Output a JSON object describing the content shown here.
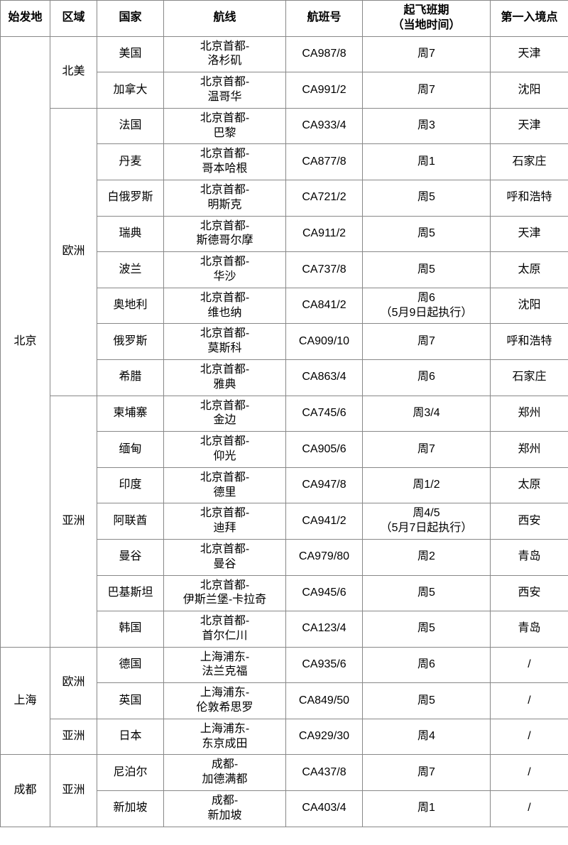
{
  "headers": {
    "origin": "始发地",
    "region": "区域",
    "country": "国家",
    "route": "航线",
    "flight": "航班号",
    "schedule": "起飞班期\n（当地时间）",
    "entry": "第一入境点"
  },
  "table": [
    {
      "origin": "北京",
      "origin_rowspan": 17,
      "region": "北美",
      "region_rowspan": 2,
      "country": "美国",
      "route": "北京首都-\n洛杉矶",
      "flight": "CA987/8",
      "schedule": "周7",
      "entry": "天津"
    },
    {
      "country": "加拿大",
      "route": "北京首都-\n温哥华",
      "flight": "CA991/2",
      "schedule": "周7",
      "entry": "沈阳"
    },
    {
      "region": "欧洲",
      "region_rowspan": 8,
      "country": "法国",
      "route": "北京首都-\n巴黎",
      "flight": "CA933/4",
      "schedule": "周3",
      "entry": "天津"
    },
    {
      "country": "丹麦",
      "route": "北京首都-\n哥本哈根",
      "flight": "CA877/8",
      "schedule": "周1",
      "entry": "石家庄"
    },
    {
      "country": "白俄罗斯",
      "route": "北京首都-\n明斯克",
      "flight": "CA721/2",
      "schedule": "周5",
      "entry": "呼和浩特"
    },
    {
      "country": "瑞典",
      "route": "北京首都-\n斯德哥尔摩",
      "flight": "CA911/2",
      "schedule": "周5",
      "entry": "天津"
    },
    {
      "country": "波兰",
      "route": "北京首都-\n华沙",
      "flight": "CA737/8",
      "schedule": "周5",
      "entry": "太原"
    },
    {
      "country": "奥地利",
      "route": "北京首都-\n维也纳",
      "flight": "CA841/2",
      "schedule": "周6\n（5月9日起执行）",
      "entry": "沈阳"
    },
    {
      "country": "俄罗斯",
      "route": "北京首都-\n莫斯科",
      "flight": "CA909/10",
      "schedule": "周7",
      "entry": "呼和浩特"
    },
    {
      "country": "希腊",
      "route": "北京首都-\n雅典",
      "flight": "CA863/4",
      "schedule": "周6",
      "entry": "石家庄"
    },
    {
      "region": "亚洲",
      "region_rowspan": 7,
      "country": "柬埔寨",
      "route": "北京首都-\n金边",
      "flight": "CA745/6",
      "schedule": "周3/4",
      "entry": "郑州"
    },
    {
      "country": "缅甸",
      "route": "北京首都-\n仰光",
      "flight": "CA905/6",
      "schedule": "周7",
      "entry": "郑州"
    },
    {
      "country": "印度",
      "route": "北京首都-\n德里",
      "flight": "CA947/8",
      "schedule": "周1/2",
      "entry": "太原"
    },
    {
      "country": "阿联酋",
      "route": "北京首都-\n迪拜",
      "flight": "CA941/2",
      "schedule": "周4/5\n（5月7日起执行）",
      "entry": "西安"
    },
    {
      "country": "曼谷",
      "route": "北京首都-\n曼谷",
      "flight": "CA979/80",
      "schedule": "周2",
      "entry": "青岛"
    },
    {
      "country": "巴基斯坦",
      "route": "北京首都-\n伊斯兰堡-卡拉奇",
      "flight": "CA945/6",
      "schedule": "周5",
      "entry": "西安"
    },
    {
      "country": "韩国",
      "route": "北京首都-\n首尔仁川",
      "flight": "CA123/4",
      "schedule": "周5",
      "entry": "青岛"
    },
    {
      "origin": "上海",
      "origin_rowspan": 3,
      "region": "欧洲",
      "region_rowspan": 2,
      "country": "德国",
      "route": "上海浦东-\n法兰克福",
      "flight": "CA935/6",
      "schedule": "周6",
      "entry": "/"
    },
    {
      "country": "英国",
      "route": "上海浦东-\n伦敦希思罗",
      "flight": "CA849/50",
      "schedule": "周5",
      "entry": "/"
    },
    {
      "region": "亚洲",
      "region_rowspan": 1,
      "country": "日本",
      "route": "上海浦东-\n东京成田",
      "flight": "CA929/30",
      "schedule": "周4",
      "entry": "/"
    },
    {
      "origin": "成都",
      "origin_rowspan": 2,
      "region": "亚洲",
      "region_rowspan": 2,
      "country": "尼泊尔",
      "route": "成都-\n加德满都",
      "flight": "CA437/8",
      "schedule": "周7",
      "entry": "/"
    },
    {
      "country": "新加坡",
      "route": "成都-\n新加坡",
      "flight": "CA403/4",
      "schedule": "周1",
      "entry": "/"
    }
  ]
}
